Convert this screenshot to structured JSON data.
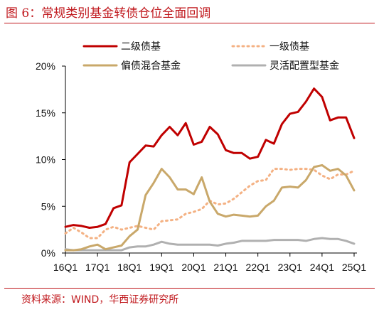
{
  "title": "图 6：常规类别基金转债仓位全面回调",
  "source": "资料来源：WIND，华西证券研究所",
  "colors": {
    "accent": "#c0181d",
    "series": [
      "#c00000",
      "#f4b183",
      "#c9a86a",
      "#b0b0b0"
    ]
  },
  "chart_data": {
    "type": "line",
    "title": "",
    "xlabel": "",
    "ylabel": "",
    "ylim": [
      0,
      20
    ],
    "yticks": [
      "0%",
      "5%",
      "10%",
      "15%",
      "20%"
    ],
    "grid": false,
    "legend_position": "top",
    "x": [
      "16Q1",
      "16Q2",
      "16Q3",
      "16Q4",
      "17Q1",
      "17Q2",
      "17Q3",
      "17Q4",
      "18Q1",
      "18Q2",
      "18Q3",
      "18Q4",
      "19Q1",
      "19Q2",
      "19Q3",
      "19Q4",
      "20Q1",
      "20Q2",
      "20Q3",
      "20Q4",
      "21Q1",
      "21Q2",
      "21Q3",
      "21Q4",
      "22Q1",
      "22Q2",
      "22Q3",
      "22Q4",
      "23Q1",
      "23Q2",
      "23Q3",
      "23Q4",
      "24Q1",
      "24Q2",
      "24Q3",
      "24Q4",
      "25Q1"
    ],
    "xtick_labels": [
      "16Q1",
      "17Q1",
      "18Q1",
      "19Q1",
      "20Q1",
      "21Q1",
      "22Q1",
      "23Q1",
      "24Q1",
      "25Q1"
    ],
    "series": [
      {
        "name": "二级债基",
        "style": "solid",
        "values": [
          2.8,
          3.0,
          2.9,
          2.7,
          2.8,
          3.1,
          4.8,
          5.1,
          9.7,
          10.6,
          11.5,
          11.4,
          12.6,
          13.5,
          12.6,
          13.9,
          11.6,
          11.9,
          13.5,
          12.7,
          11.0,
          10.7,
          10.7,
          10.1,
          10.3,
          12.1,
          11.7,
          13.8,
          14.9,
          15.1,
          16.2,
          17.6,
          16.7,
          14.2,
          14.5,
          14.5,
          12.3
        ]
      },
      {
        "name": "一级债基",
        "style": "dotted",
        "values": [
          2.1,
          2.7,
          2.2,
          1.6,
          1.6,
          2.5,
          2.8,
          2.5,
          2.7,
          2.9,
          2.7,
          2.5,
          3.4,
          3.5,
          3.6,
          4.2,
          4.4,
          4.7,
          5.6,
          5.2,
          5.3,
          5.8,
          6.5,
          7.2,
          7.7,
          7.8,
          9.0,
          9.0,
          8.9,
          9.0,
          9.0,
          8.9,
          8.3,
          7.9,
          8.4,
          8.4,
          8.8
        ]
      },
      {
        "name": "偏债混合基金",
        "style": "solid",
        "values": [
          0.3,
          0.3,
          0.4,
          0.7,
          0.9,
          0.4,
          0.6,
          0.8,
          1.8,
          2.5,
          6.2,
          7.5,
          9.0,
          8.1,
          6.8,
          6.8,
          6.3,
          8.1,
          5.5,
          4.2,
          3.9,
          4.1,
          4.0,
          3.9,
          4.0,
          5.0,
          5.6,
          7.0,
          7.1,
          7.0,
          7.8,
          9.2,
          9.4,
          8.8,
          9.0,
          8.3,
          6.7
        ]
      },
      {
        "name": "灵活配置型基金",
        "style": "solid",
        "values": [
          0.4,
          0.3,
          0.3,
          0.3,
          0.3,
          0.3,
          0.3,
          0.3,
          0.6,
          0.7,
          0.7,
          0.9,
          1.2,
          1.0,
          0.9,
          0.9,
          0.9,
          0.9,
          0.9,
          0.8,
          1.0,
          1.1,
          1.3,
          1.3,
          1.3,
          1.3,
          1.4,
          1.4,
          1.4,
          1.4,
          1.3,
          1.5,
          1.6,
          1.5,
          1.5,
          1.3,
          1.0
        ]
      }
    ]
  }
}
